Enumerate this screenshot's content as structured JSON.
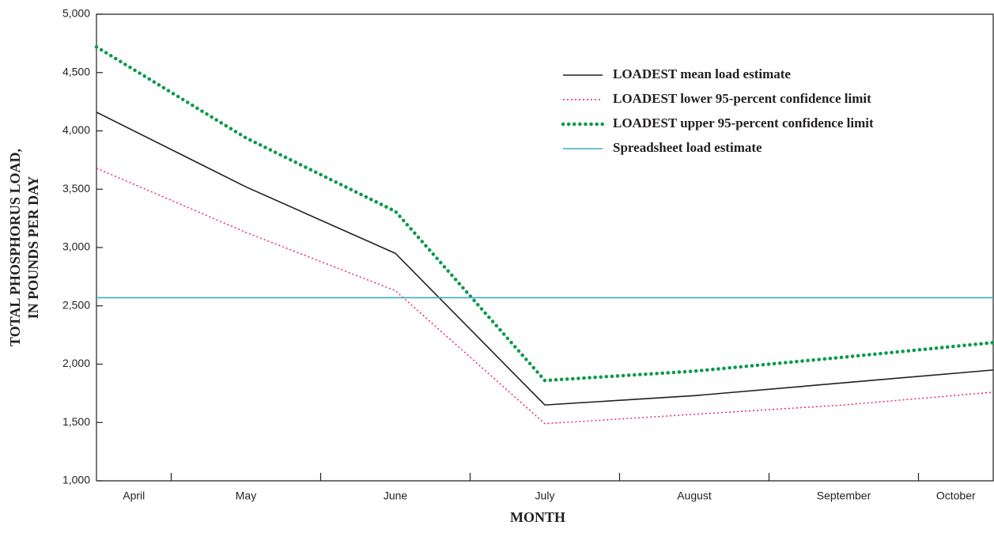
{
  "chart_data": {
    "type": "line",
    "xlabel": "MONTH",
    "ylabel": [
      "TOTAL PHOSPHORUS LOAD,",
      "IN POUNDS PER DAY"
    ],
    "categories": [
      "April",
      "May",
      "June",
      "July",
      "August",
      "September",
      "October"
    ],
    "series": [
      {
        "name": "LOADEST mean load estimate",
        "color": "#231f20",
        "style": "solid",
        "values": [
          4160,
          3520,
          2950,
          1650,
          1730,
          1840,
          1950
        ]
      },
      {
        "name": "LOADEST lower 95-percent confidence limit",
        "color": "#e6197d",
        "style": "dotted",
        "values": [
          3680,
          3130,
          2630,
          1490,
          1570,
          1650,
          1760
        ]
      },
      {
        "name": "LOADEST upper 95-percent confidence limit",
        "color": "#0a9a4a",
        "style": "heavy-dotted",
        "values": [
          4720,
          3940,
          3310,
          1860,
          1940,
          2060,
          2185
        ]
      },
      {
        "name": "Spreadsheet load estimate",
        "color": "#3fa9c9",
        "style": "solid",
        "values": [
          2570,
          2570,
          2570,
          2570,
          2570,
          2570,
          2570
        ]
      }
    ],
    "ylim": [
      1000,
      5000
    ],
    "yticks": [
      {
        "value": 1000,
        "label": "1,000"
      },
      {
        "value": 1500,
        "label": "1,500"
      },
      {
        "value": 2000,
        "label": "2,000"
      },
      {
        "value": 2500,
        "label": "2,500"
      },
      {
        "value": 3000,
        "label": "3,000"
      },
      {
        "value": 3500,
        "label": "3,500"
      },
      {
        "value": 4000,
        "label": "4,000"
      },
      {
        "value": 4500,
        "label": "4,500"
      },
      {
        "value": 5000,
        "label": "5,000"
      }
    ],
    "legend": "upper right"
  }
}
